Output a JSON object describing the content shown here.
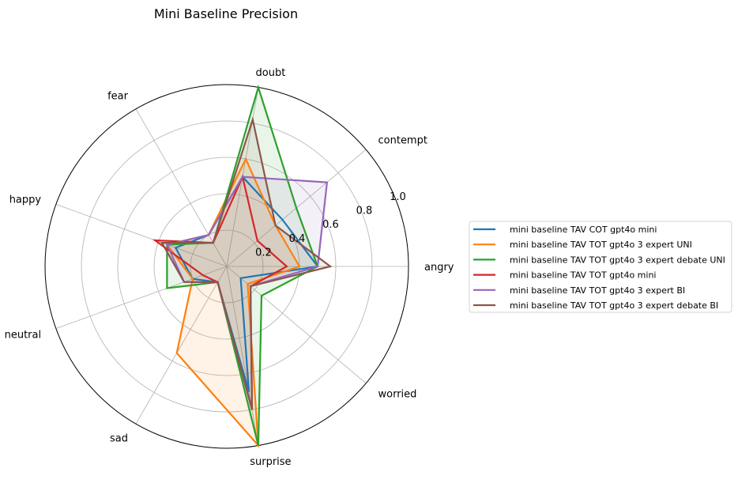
{
  "chart_data": {
    "type": "radar",
    "title": "Mini Baseline Precision",
    "categories": [
      "angry",
      "contempt",
      "doubt",
      "fear",
      "happy",
      "neutral",
      "sad",
      "surprise",
      "worried"
    ],
    "r_ticks": [
      0.2,
      0.4,
      0.6,
      0.8,
      1.0
    ],
    "r_tick_labels": [
      "0.2",
      "0.4",
      "0.6",
      "0.8",
      "1.0"
    ],
    "rlim": [
      0,
      1.0
    ],
    "grid": true,
    "legend_position": "right",
    "series": [
      {
        "name": "mini baseline TAV COT gpt4o mini",
        "color": "#1f77b4",
        "fill": false,
        "values": [
          0.5,
          0.4,
          0.5,
          0.2,
          0.3,
          0.2,
          0.1,
          0.7,
          0.1
        ]
      },
      {
        "name": "mini baseline TAV TOT gpt4o 3 expert UNI",
        "color": "#ff7f0e",
        "fill": true,
        "values": [
          0.4,
          0.35,
          0.6,
          0.2,
          0.35,
          0.2,
          0.55,
          1.0,
          0.15
        ]
      },
      {
        "name": "mini baseline TAV TOT gpt4o 3 expert debate UNI",
        "color": "#2ca02c",
        "fill": true,
        "values": [
          0.5,
          0.5,
          1.0,
          0.15,
          0.35,
          0.35,
          0.1,
          1.0,
          0.25
        ]
      },
      {
        "name": "mini baseline TAV TOT gpt4o mini",
        "color": "#d62728",
        "fill": false,
        "values": [
          0.33,
          0.22,
          0.5,
          0.15,
          0.42,
          0.14,
          0.1,
          0.8,
          0.17
        ]
      },
      {
        "name": "mini baseline TAV TOT gpt4o 3 expert BI",
        "color": "#9467bd",
        "fill": true,
        "values": [
          0.5,
          0.72,
          0.5,
          0.2,
          0.35,
          0.25,
          0.1,
          0.8,
          0.17
        ]
      },
      {
        "name": "mini baseline TAV TOT gpt4o 3 expert debate BI",
        "color": "#8c564b",
        "fill": true,
        "values": [
          0.57,
          0.35,
          0.82,
          0.15,
          0.38,
          0.25,
          0.1,
          0.8,
          0.17
        ]
      }
    ]
  }
}
